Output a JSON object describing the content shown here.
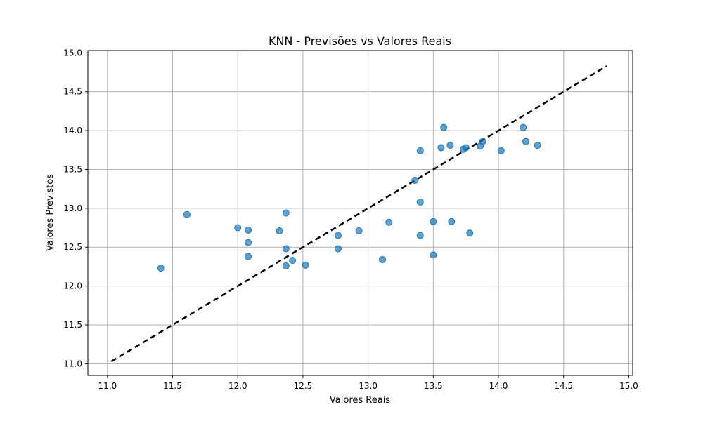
{
  "chart_data": {
    "type": "scatter",
    "title": "KNN - Previsões vs Valores Reais",
    "xlabel": "Valores Reais",
    "ylabel": "Valores Previstos",
    "xlim": [
      10.85,
      15.03
    ],
    "ylim": [
      10.85,
      15.03
    ],
    "xticks": [
      "11.0",
      "11.5",
      "12.0",
      "12.5",
      "13.0",
      "13.5",
      "14.0",
      "14.5",
      "15.0"
    ],
    "yticks": [
      "11.0",
      "11.5",
      "12.0",
      "12.5",
      "13.0",
      "13.5",
      "14.0",
      "14.5",
      "15.0"
    ],
    "grid": true,
    "point_color": "#1f77b4",
    "reference_line": {
      "x": [
        11.03,
        14.83
      ],
      "y": [
        11.03,
        14.83
      ],
      "style": "dashed",
      "color": "#000000"
    },
    "points": [
      {
        "x": 11.41,
        "y": 12.23
      },
      {
        "x": 11.61,
        "y": 12.92
      },
      {
        "x": 12.0,
        "y": 12.75
      },
      {
        "x": 12.08,
        "y": 12.72
      },
      {
        "x": 12.08,
        "y": 12.56
      },
      {
        "x": 12.08,
        "y": 12.38
      },
      {
        "x": 12.32,
        "y": 12.71
      },
      {
        "x": 12.37,
        "y": 12.94
      },
      {
        "x": 12.37,
        "y": 12.48
      },
      {
        "x": 12.37,
        "y": 12.26
      },
      {
        "x": 12.42,
        "y": 12.33
      },
      {
        "x": 12.52,
        "y": 12.27
      },
      {
        "x": 12.77,
        "y": 12.65
      },
      {
        "x": 12.77,
        "y": 12.48
      },
      {
        "x": 12.93,
        "y": 12.71
      },
      {
        "x": 13.11,
        "y": 12.34
      },
      {
        "x": 13.16,
        "y": 12.82
      },
      {
        "x": 13.36,
        "y": 13.36
      },
      {
        "x": 13.4,
        "y": 13.74
      },
      {
        "x": 13.4,
        "y": 13.08
      },
      {
        "x": 13.4,
        "y": 12.65
      },
      {
        "x": 13.5,
        "y": 12.83
      },
      {
        "x": 13.5,
        "y": 12.4
      },
      {
        "x": 13.56,
        "y": 13.78
      },
      {
        "x": 13.58,
        "y": 14.04
      },
      {
        "x": 13.63,
        "y": 13.81
      },
      {
        "x": 13.64,
        "y": 12.83
      },
      {
        "x": 13.73,
        "y": 13.76
      },
      {
        "x": 13.75,
        "y": 13.78
      },
      {
        "x": 13.78,
        "y": 12.68
      },
      {
        "x": 13.86,
        "y": 13.8
      },
      {
        "x": 13.88,
        "y": 13.86
      },
      {
        "x": 14.02,
        "y": 13.74
      },
      {
        "x": 14.19,
        "y": 14.04
      },
      {
        "x": 14.21,
        "y": 13.86
      },
      {
        "x": 14.3,
        "y": 13.81
      }
    ]
  }
}
